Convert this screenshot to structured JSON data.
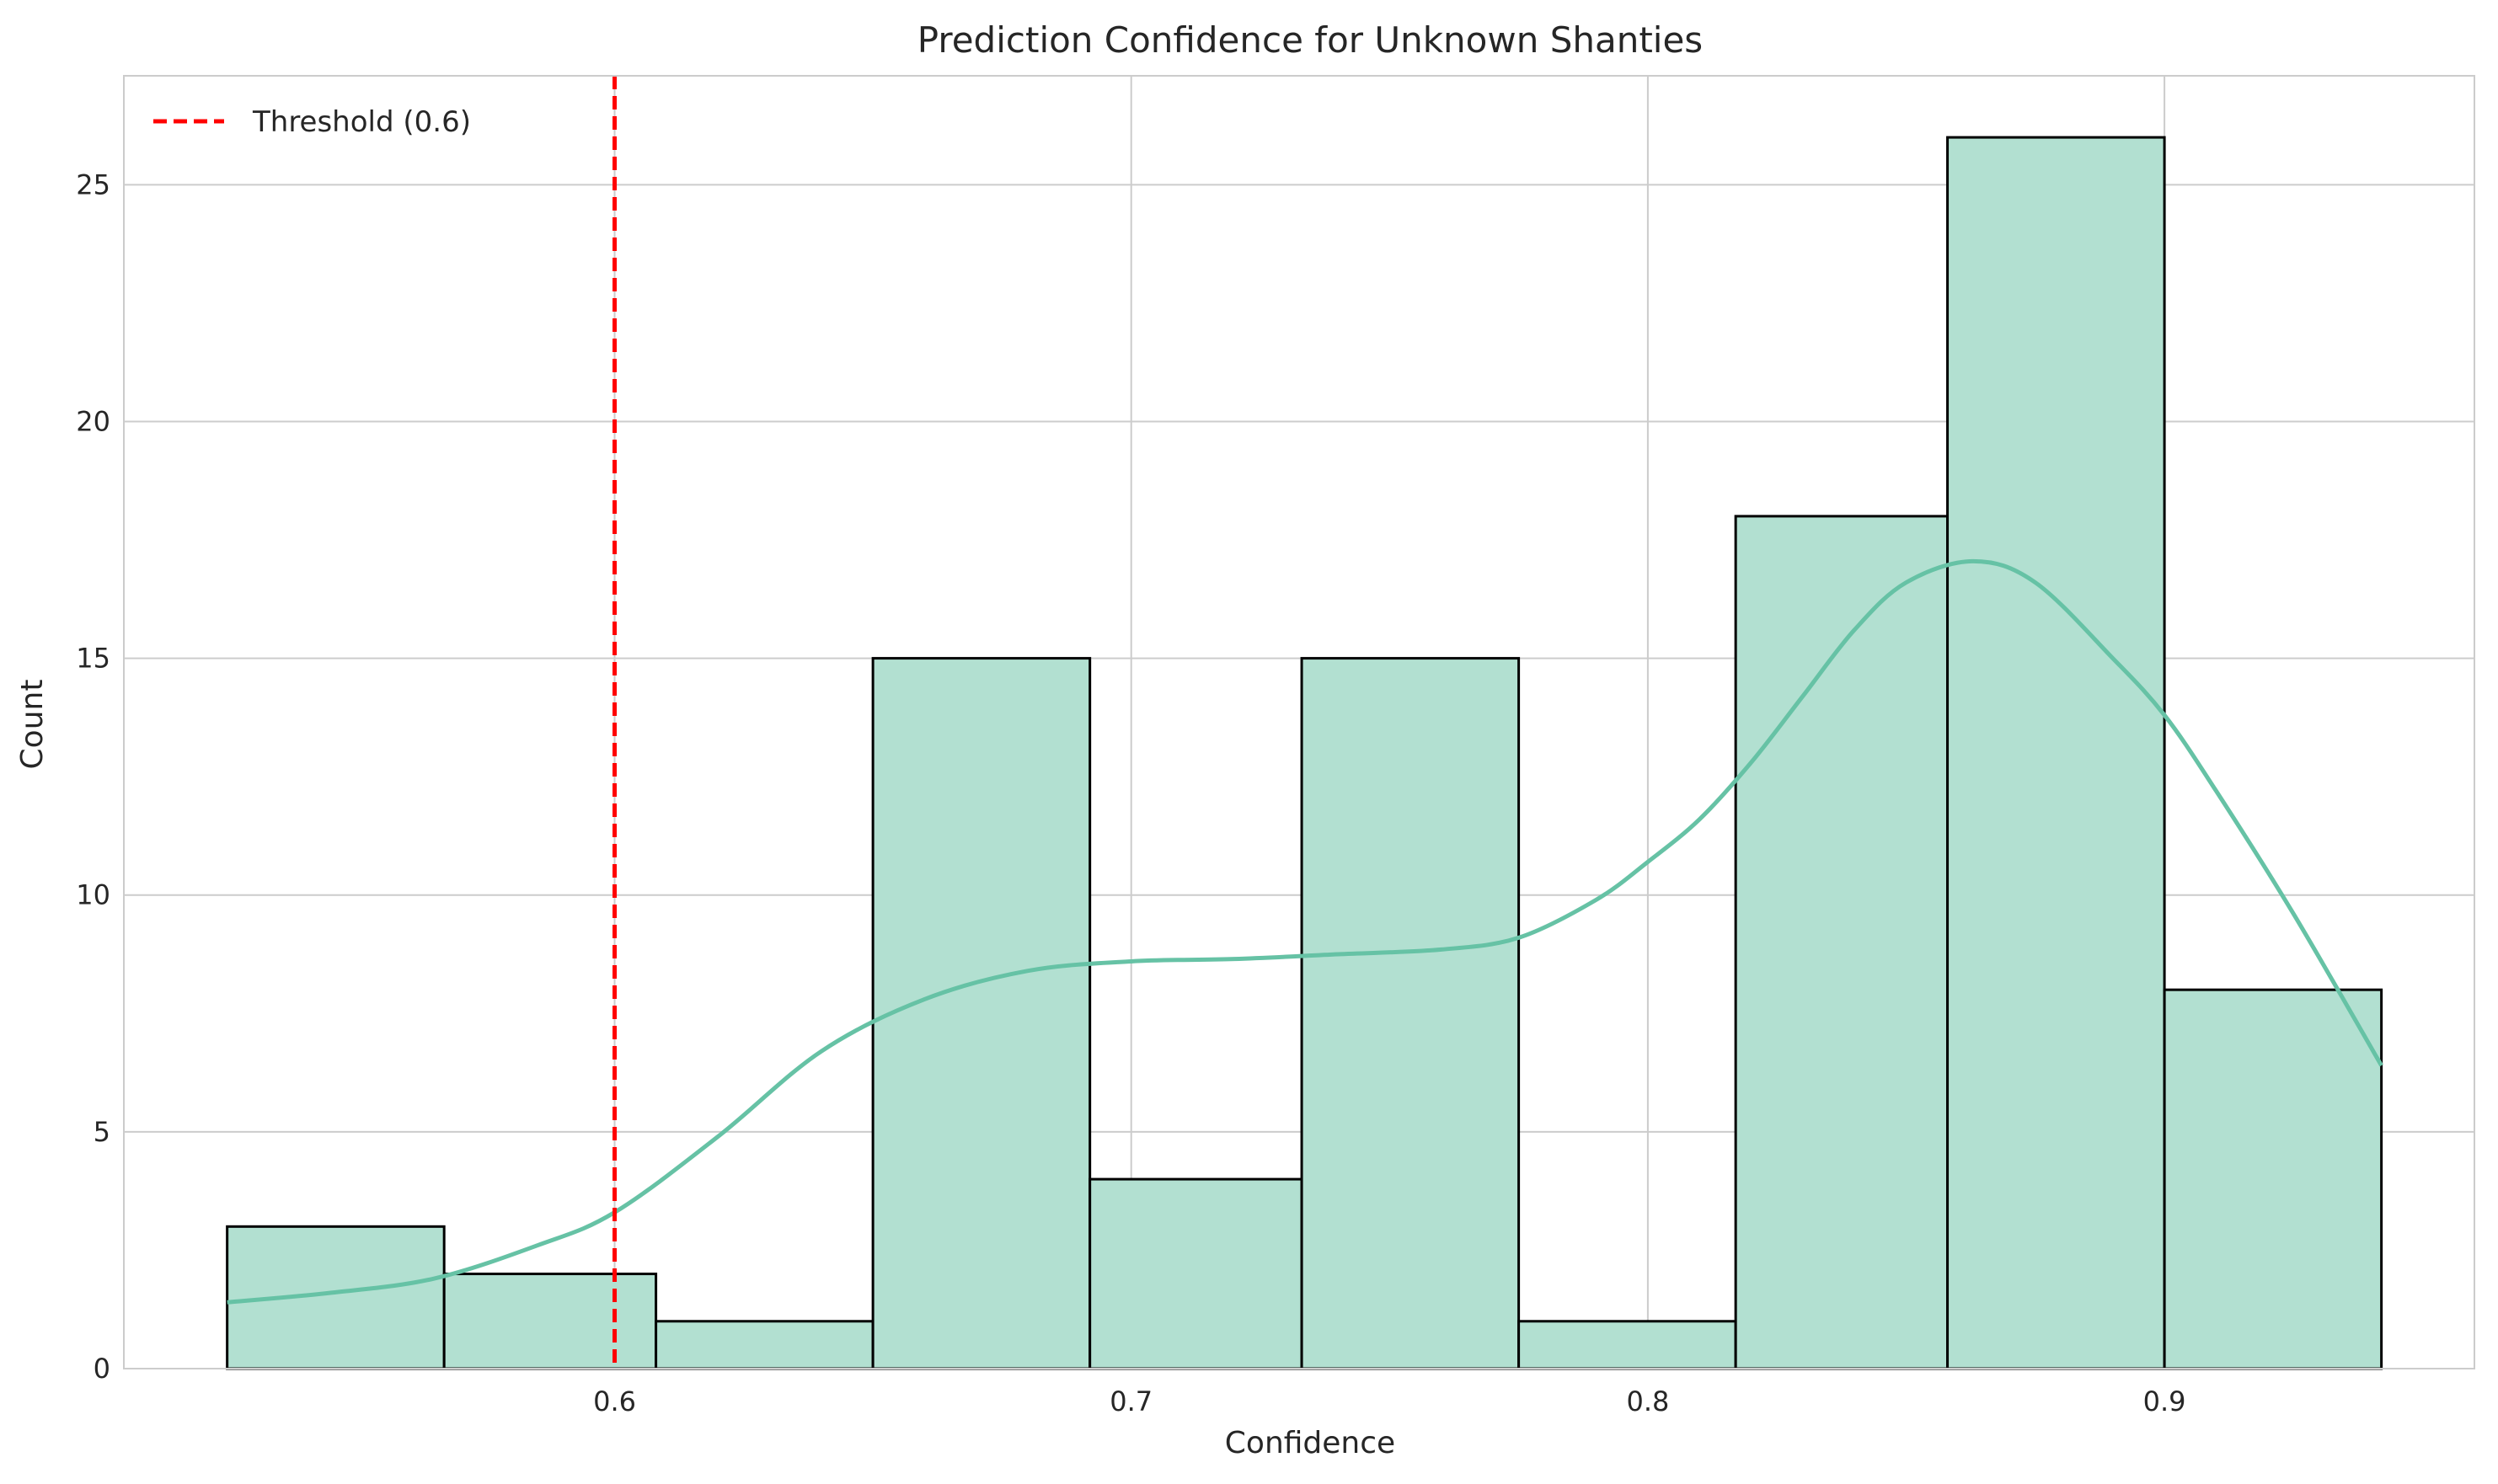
{
  "chart_data": {
    "type": "bar",
    "subtype": "histogram_with_kde",
    "title": "Prediction Confidence for Unknown Shanties",
    "xlabel": "Confidence",
    "ylabel": "Count",
    "xlim": [
      0.505,
      0.96
    ],
    "ylim": [
      0,
      27.3
    ],
    "xticks": [
      0.6,
      0.7,
      0.8,
      0.9
    ],
    "yticks": [
      0,
      5,
      10,
      15,
      20,
      25
    ],
    "bin_edges": [
      0.525,
      0.567,
      0.608,
      0.65,
      0.692,
      0.733,
      0.775,
      0.817,
      0.858,
      0.9,
      0.942
    ],
    "counts": [
      3,
      2,
      1,
      15,
      4,
      15,
      1,
      18,
      26,
      8
    ],
    "kde": {
      "x": [
        0.525,
        0.545,
        0.565,
        0.585,
        0.6,
        0.62,
        0.64,
        0.66,
        0.68,
        0.7,
        0.72,
        0.74,
        0.76,
        0.775,
        0.79,
        0.8,
        0.81,
        0.82,
        0.83,
        0.84,
        0.85,
        0.863,
        0.875,
        0.89,
        0.9,
        0.91,
        0.925,
        0.942
      ],
      "y": [
        1.4,
        1.6,
        1.9,
        2.6,
        3.3,
        4.9,
        6.7,
        7.8,
        8.4,
        8.6,
        8.65,
        8.75,
        8.85,
        9.1,
        9.9,
        10.7,
        11.6,
        12.8,
        14.2,
        15.6,
        16.6,
        17.05,
        16.6,
        15.0,
        13.8,
        12.2,
        9.6,
        6.4
      ]
    },
    "threshold": {
      "value": 0.6,
      "label": "Threshold (0.6)",
      "color": "#ff0000"
    },
    "bar_fill": "#b2e0d1",
    "bar_edge": "#000000",
    "kde_color": "#66c2a5",
    "grid": true,
    "legend_position": "top-left"
  }
}
